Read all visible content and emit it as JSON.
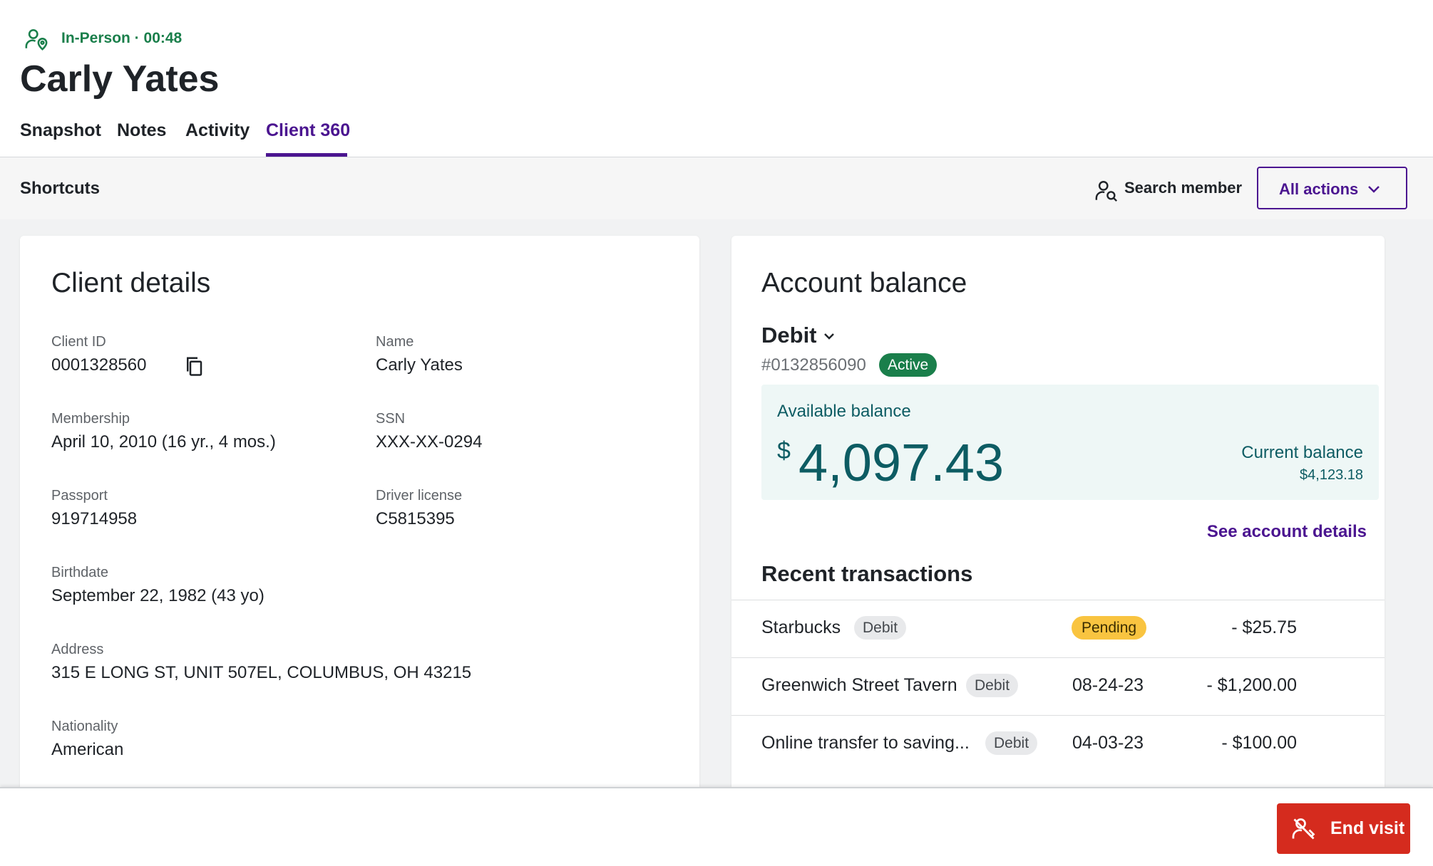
{
  "header": {
    "status": "In-Person · 00:48",
    "name": "Carly Yates",
    "tabs": [
      "Snapshot",
      "Notes",
      "Activity",
      "Client 360"
    ],
    "active_tab": 3
  },
  "shortcuts": {
    "title": "Shortcuts",
    "search": "Search member",
    "actions": "All actions"
  },
  "client_details": {
    "title": "Client details",
    "fields": [
      {
        "label": "Client ID",
        "value": "0001328560"
      },
      {
        "label": "Name",
        "value": "Carly Yates"
      },
      {
        "label": "Membership",
        "value": "April 10, 2010 (16 yr., 4 mos.)"
      },
      {
        "label": "SSN",
        "value": "XXX-XX-0294"
      },
      {
        "label": "Passport",
        "value": "919714958"
      },
      {
        "label": "Driver license",
        "value": "C5815395"
      },
      {
        "label": "Birthdate",
        "value": "September 22, 1982 (43 yo)"
      },
      {
        "label": "Address",
        "value": "315 E LONG ST, UNIT 507EL, COLUMBUS, OH 43215"
      },
      {
        "label": "Nationality",
        "value": "American"
      }
    ]
  },
  "account_balance": {
    "title": "Account balance",
    "account_type": "Debit",
    "account_number": "#0132856090",
    "status": "Active",
    "available_label": "Available balance",
    "currency_symbol": "$",
    "available_amount": "4,097.43",
    "current_label": "Current balance",
    "current_amount": "$4,123.18",
    "details_link": "See account details",
    "transactions_title": "Recent transactions",
    "transactions": [
      {
        "name": "Starbucks",
        "type": "Debit",
        "status": "Pending",
        "amount": "- $25.75"
      },
      {
        "name": "Greenwich Street Tavern",
        "type": "Debit",
        "date": "08-24-23",
        "amount": "- $1,200.00"
      },
      {
        "name": "Online transfer to saving...",
        "type": "Debit",
        "date": "04-03-23",
        "amount": "- $100.00"
      }
    ]
  },
  "footer": {
    "end_visit": "End visit"
  }
}
